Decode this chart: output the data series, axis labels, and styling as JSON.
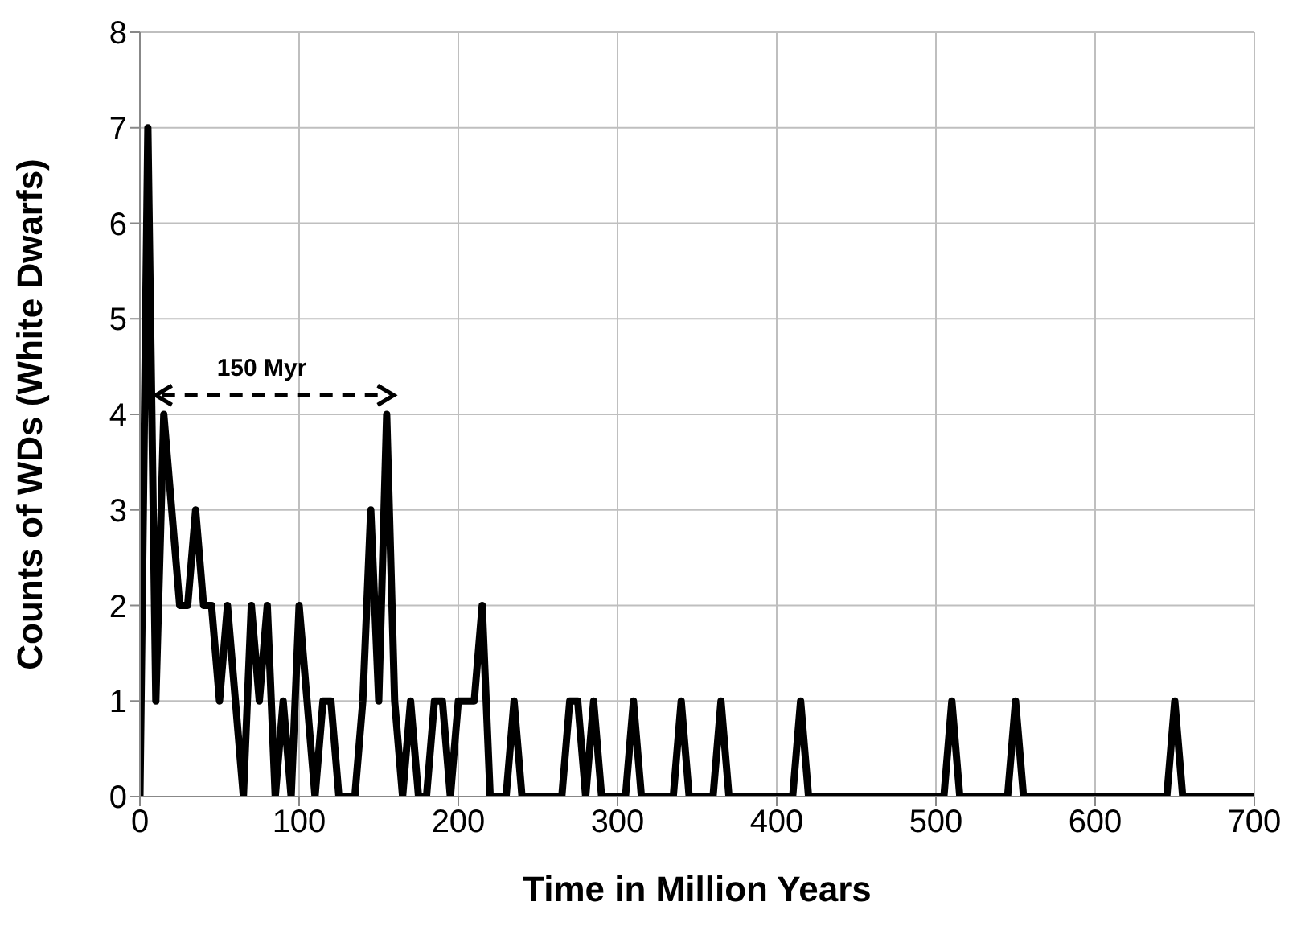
{
  "chart_data": {
    "type": "line",
    "xlabel": "Time in Million Years",
    "ylabel": "Counts of WDs (White Dwarfs)",
    "x": [
      0,
      5,
      10,
      15,
      20,
      25,
      30,
      35,
      40,
      45,
      50,
      55,
      60,
      65,
      70,
      75,
      80,
      85,
      90,
      95,
      100,
      105,
      110,
      115,
      120,
      125,
      130,
      135,
      140,
      145,
      150,
      155,
      160,
      165,
      170,
      175,
      180,
      185,
      190,
      195,
      200,
      205,
      210,
      215,
      220,
      225,
      230,
      235,
      240,
      265,
      270,
      275,
      280,
      285,
      290,
      305,
      310,
      315,
      335,
      340,
      345,
      360,
      365,
      370,
      410,
      415,
      420,
      505,
      510,
      515,
      545,
      550,
      555,
      645,
      650,
      655,
      700
    ],
    "series": [
      {
        "color": "#000000",
        "values": [
          0,
          7,
          1,
          4,
          3,
          2,
          2,
          3,
          2,
          2,
          1,
          2,
          1,
          0,
          2,
          1,
          2,
          0,
          1,
          0,
          2,
          1,
          0,
          1,
          1,
          0,
          0,
          0,
          1,
          3,
          1,
          4,
          1,
          0,
          1,
          0,
          0,
          1,
          1,
          0,
          1,
          1,
          1,
          2,
          0,
          0,
          0,
          1,
          0,
          0,
          1,
          1,
          0,
          1,
          0,
          0,
          1,
          0,
          0,
          1,
          0,
          0,
          1,
          0,
          0,
          1,
          0,
          0,
          1,
          0,
          0,
          1,
          0,
          0,
          1,
          0,
          0
        ]
      }
    ],
    "xlim": [
      0,
      700
    ],
    "xticks": [
      0,
      100,
      200,
      300,
      400,
      500,
      600,
      700
    ],
    "ylim": [
      0,
      8
    ],
    "yticks": [
      0,
      1,
      2,
      3,
      4,
      5,
      6,
      7,
      8
    ],
    "grid": true,
    "legend": false,
    "marker": "none",
    "line_style": "solid",
    "annotations": [
      "150 Myr"
    ]
  }
}
